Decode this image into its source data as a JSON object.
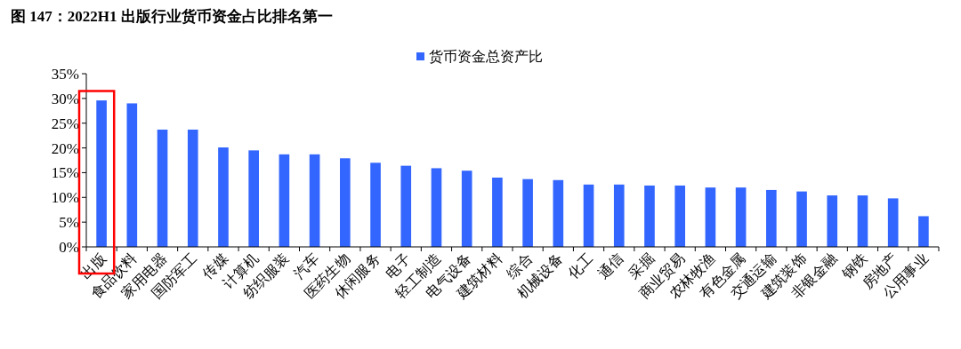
{
  "chart_data": {
    "type": "bar",
    "title": "图 147：2022H1 出版行业货币资金占比排名第一",
    "categories": [
      "出版",
      "食品饮料",
      "家用电器",
      "国防军工",
      "传媒",
      "计算机",
      "纺织服装",
      "汽车",
      "医药生物",
      "休闲服务",
      "电子",
      "轻工制造",
      "电气设备",
      "建筑材料",
      "综合",
      "机械设备",
      "化工",
      "通信",
      "采掘",
      "商业贸易",
      "农林牧渔",
      "有色金属",
      "交通运输",
      "建筑装饰",
      "非银金融",
      "钢铁",
      "房地产",
      "公用事业"
    ],
    "series": [
      {
        "name": "货币资金总资产比",
        "color": "#3366ff",
        "values": [
          29.6,
          29.0,
          23.7,
          23.7,
          20.1,
          19.5,
          18.7,
          18.7,
          17.9,
          17.0,
          16.4,
          15.9,
          15.4,
          14.0,
          13.7,
          13.5,
          12.6,
          12.6,
          12.4,
          12.4,
          12.0,
          12.0,
          11.5,
          11.2,
          10.4,
          10.4,
          9.8,
          6.2
        ]
      }
    ],
    "ylim": [
      0,
      35
    ],
    "yticks": [
      {
        "value": 0,
        "label": "0%"
      },
      {
        "value": 5,
        "label": "5%"
      },
      {
        "value": 10,
        "label": "10%"
      },
      {
        "value": 15,
        "label": "15%"
      },
      {
        "value": 20,
        "label": "20%"
      },
      {
        "value": 25,
        "label": "25%"
      },
      {
        "value": 30,
        "label": "30%"
      },
      {
        "value": 35,
        "label": "35%"
      }
    ],
    "legend": "top"
  }
}
